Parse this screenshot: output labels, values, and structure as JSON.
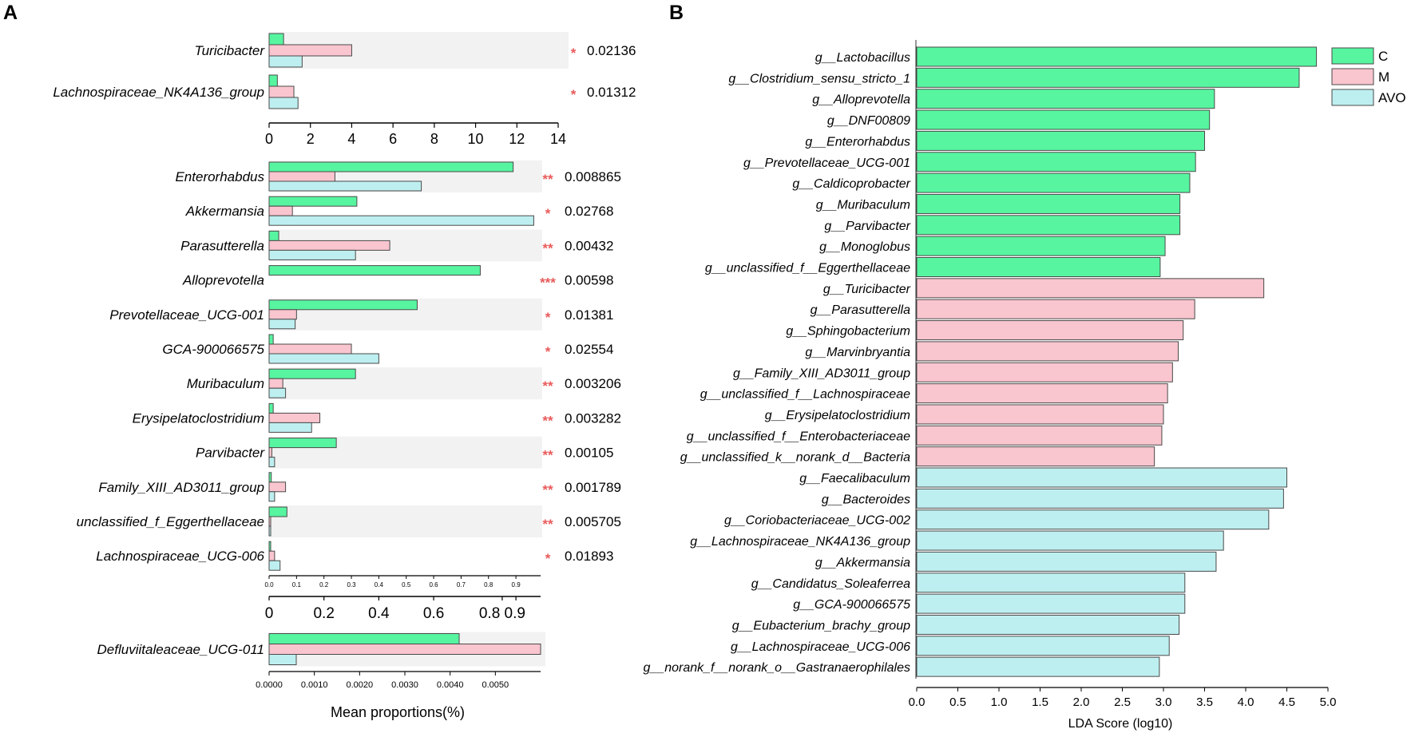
{
  "panel_labels": {
    "a": "A",
    "b": "B"
  },
  "colors": {
    "C": "#57F5A0",
    "M": "#F9C5CF",
    "AVO": "#BEEFF0",
    "star": "#E95A5A",
    "stripe": "#F2F2F2",
    "stroke": "#4a4a4a"
  },
  "chart_data": [
    {
      "type": "bar",
      "orientation": "horizontal",
      "panel": "A-top",
      "series_names": [
        "C",
        "M",
        "AVO"
      ],
      "categories": [
        "Turicibacter",
        "Lachnospiraceae_NK4A136_group"
      ],
      "series": [
        {
          "name": "C",
          "values": [
            0.7,
            0.4
          ]
        },
        {
          "name": "M",
          "values": [
            4.0,
            1.2
          ]
        },
        {
          "name": "AVO",
          "values": [
            1.6,
            1.4
          ]
        }
      ],
      "significance": [
        "*",
        "*"
      ],
      "p_values": [
        "0.02136",
        "0.01312"
      ],
      "xlim": [
        0,
        14
      ],
      "ticks": [
        "0",
        "2",
        "4",
        "6",
        "8",
        "10",
        "12",
        "14"
      ]
    },
    {
      "type": "bar",
      "orientation": "horizontal",
      "panel": "A-middle",
      "series_names": [
        "C",
        "M",
        "AVO"
      ],
      "categories": [
        "Enterorhabdus",
        "Akkermansia",
        "Parasutterella",
        "Alloprevotella",
        "Prevotellaceae_UCG-001",
        "GCA-900066575",
        "Muribaculum",
        "Erysipelatoclostridium",
        "Parvibacter",
        "Family_XIII_AD3011_group",
        "unclassified_f_Eggerthellaceae",
        "Lachnospiraceae_UCG-006"
      ],
      "series": [
        {
          "name": "C",
          "values": [
            0.89,
            0.32,
            0.035,
            0.77,
            0.54,
            0.015,
            0.315,
            0.015,
            0.245,
            0.008,
            0.065,
            0.005
          ]
        },
        {
          "name": "M",
          "values": [
            0.24,
            0.085,
            0.44,
            0.0,
            0.1,
            0.3,
            0.05,
            0.185,
            0.01,
            0.06,
            0.005,
            0.02
          ]
        },
        {
          "name": "AVO",
          "values": [
            0.555,
            0.965,
            0.315,
            0.0,
            0.095,
            0.4,
            0.06,
            0.155,
            0.02,
            0.02,
            0.005,
            0.04
          ]
        }
      ],
      "significance": [
        "**",
        "*",
        "**",
        "***",
        "*",
        "*",
        "**",
        "**",
        "**",
        "**",
        "**",
        "*"
      ],
      "p_values": [
        "0.008865",
        "0.02768",
        "0.00432",
        "0.00598",
        "0.01381",
        "0.02554",
        "0.003206",
        "0.003282",
        "0.00105",
        "0.001789",
        "0.005705",
        "0.01893"
      ],
      "xlim": [
        0,
        0.99
      ],
      "minor_ticks": [
        "0.0",
        "0.1",
        "0.2",
        "0.3",
        "0.4",
        "0.5",
        "0.6",
        "0.7",
        "0.8",
        "0.9"
      ],
      "major_ticks": [
        {
          "label": "0",
          "value": 0
        },
        {
          "label": "0.2",
          "value": 0.2
        },
        {
          "label": "0.4",
          "value": 0.4
        },
        {
          "label": "0.6",
          "value": 0.6
        },
        {
          "label": "0.8 0.9",
          "value": 0.85
        }
      ]
    },
    {
      "type": "bar",
      "orientation": "horizontal",
      "panel": "A-bottom",
      "series_names": [
        "C",
        "M",
        "AVO"
      ],
      "categories": [
        "Defluviitaleaceae_UCG-011"
      ],
      "series": [
        {
          "name": "C",
          "values": [
            0.0042
          ]
        },
        {
          "name": "M",
          "values": [
            0.006
          ]
        },
        {
          "name": "AVO",
          "values": [
            0.0006
          ]
        }
      ],
      "xlim": [
        0,
        0.006
      ],
      "ticks": [
        "0.0000",
        "0.0010",
        "0.0020",
        "0.0030",
        "0.0040",
        "0.0050"
      ],
      "xlabel": "Mean proportions(%)"
    },
    {
      "type": "bar",
      "orientation": "horizontal",
      "panel": "B",
      "categories": [
        "g__Lactobacillus",
        "g__Clostridium_sensu_stricto_1",
        "g__Alloprevotella",
        "g__DNF00809",
        "g__Enterorhabdus",
        "g__Prevotellaceae_UCG-001",
        "g__Caldicoprobacter",
        "g__Muribaculum",
        "g__Parvibacter",
        "g__Monoglobus",
        "g__unclassified_f__Eggerthellaceae",
        "g__Turicibacter",
        "g__Parasutterella",
        "g__Sphingobacterium",
        "g__Marvinbryantia",
        "g__Family_XIII_AD3011_group",
        "g__unclassified_f__Lachnospiraceae",
        "g__Erysipelatoclostridium",
        "g__unclassified_f__Enterobacteriaceae",
        "g__unclassified_k__norank_d__Bacteria",
        "g__Faecalibaculum",
        "g__Bacteroides",
        "g__Coriobacteriaceae_UCG-002",
        "g__Lachnospiraceae_NK4A136_group",
        "g__Akkermansia",
        "g__Candidatus_Soleaferrea",
        "g__GCA-900066575",
        "g__Eubacterium_brachy_group",
        "g__Lachnospiraceae_UCG-006",
        "g__norank_f__norank_o__Gastranaerophilales"
      ],
      "values": [
        4.86,
        4.65,
        3.62,
        3.56,
        3.5,
        3.39,
        3.32,
        3.2,
        3.2,
        3.02,
        2.96,
        4.22,
        3.38,
        3.24,
        3.18,
        3.11,
        3.05,
        3.0,
        2.98,
        2.89,
        4.5,
        4.46,
        4.28,
        3.73,
        3.64,
        3.26,
        3.26,
        3.19,
        3.07,
        2.95
      ],
      "groups": [
        "C",
        "C",
        "C",
        "C",
        "C",
        "C",
        "C",
        "C",
        "C",
        "C",
        "C",
        "M",
        "M",
        "M",
        "M",
        "M",
        "M",
        "M",
        "M",
        "M",
        "AVO",
        "AVO",
        "AVO",
        "AVO",
        "AVO",
        "AVO",
        "AVO",
        "AVO",
        "AVO",
        "AVO"
      ],
      "xlim": [
        0,
        5.0
      ],
      "ticks": [
        "0.0",
        "0.5",
        "1.0",
        "1.5",
        "2.0",
        "2.5",
        "3.0",
        "3.5",
        "4.0",
        "4.5",
        "5.0"
      ],
      "xlabel": "LDA Score (log10)",
      "legend": [
        "C",
        "M",
        "AVO"
      ],
      "legend_position": "top-right"
    }
  ]
}
